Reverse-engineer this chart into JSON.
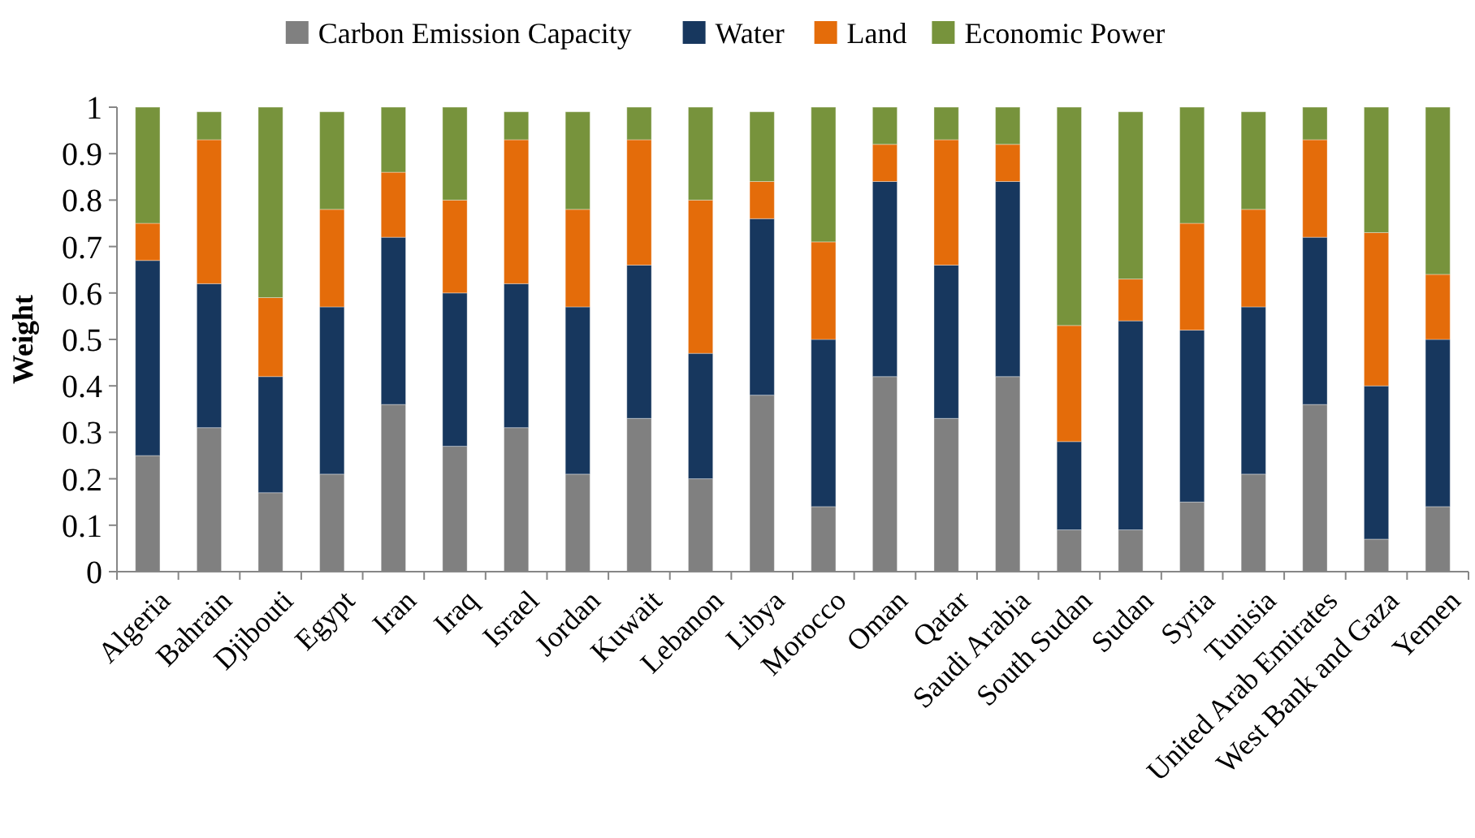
{
  "chart_data": {
    "type": "bar",
    "stacked": true,
    "ylabel": "Weight",
    "legend": "top",
    "grid": false,
    "categories": [
      "Algeria",
      "Bahrain",
      "Djibouti",
      "Egypt",
      "Iran",
      "Iraq",
      "Israel",
      "Jordan",
      "Kuwait",
      "Lebanon",
      "Libya",
      "Morocco",
      "Oman",
      "Qatar",
      "Saudi Arabia",
      "South Sudan",
      "Sudan",
      "Syria",
      "Tunisia",
      "United Arab Emirates",
      "West Bank and Gaza",
      "Yemen"
    ],
    "ylim": [
      0,
      1
    ],
    "yticks": [
      0,
      0.1,
      0.2,
      0.3,
      0.4,
      0.5,
      0.6,
      0.7,
      0.8,
      0.9,
      1
    ],
    "series": [
      {
        "name": "Carbon Emission Capacity",
        "color": "#808080",
        "values": [
          0.25,
          0.31,
          0.17,
          0.21,
          0.36,
          0.27,
          0.31,
          0.21,
          0.33,
          0.2,
          0.38,
          0.14,
          0.42,
          0.33,
          0.42,
          0.09,
          0.09,
          0.15,
          0.21,
          0.36,
          0.07,
          0.14
        ]
      },
      {
        "name": "Water",
        "color": "#17375e",
        "values": [
          0.42,
          0.31,
          0.25,
          0.36,
          0.36,
          0.33,
          0.31,
          0.36,
          0.33,
          0.27,
          0.38,
          0.36,
          0.42,
          0.33,
          0.42,
          0.19,
          0.45,
          0.37,
          0.36,
          0.36,
          0.33,
          0.36
        ]
      },
      {
        "name": "Land",
        "color": "#e46c0a",
        "values": [
          0.08,
          0.31,
          0.17,
          0.21,
          0.14,
          0.2,
          0.31,
          0.21,
          0.27,
          0.33,
          0.08,
          0.21,
          0.08,
          0.27,
          0.08,
          0.25,
          0.09,
          0.23,
          0.21,
          0.21,
          0.33,
          0.14
        ]
      },
      {
        "name": "Economic Power",
        "color": "#77933c",
        "values": [
          0.25,
          0.06,
          0.41,
          0.21,
          0.14,
          0.2,
          0.06,
          0.21,
          0.07,
          0.2,
          0.15,
          0.29,
          0.08,
          0.07,
          0.08,
          0.47,
          0.36,
          0.25,
          0.21,
          0.07,
          0.27,
          0.36
        ]
      }
    ]
  }
}
